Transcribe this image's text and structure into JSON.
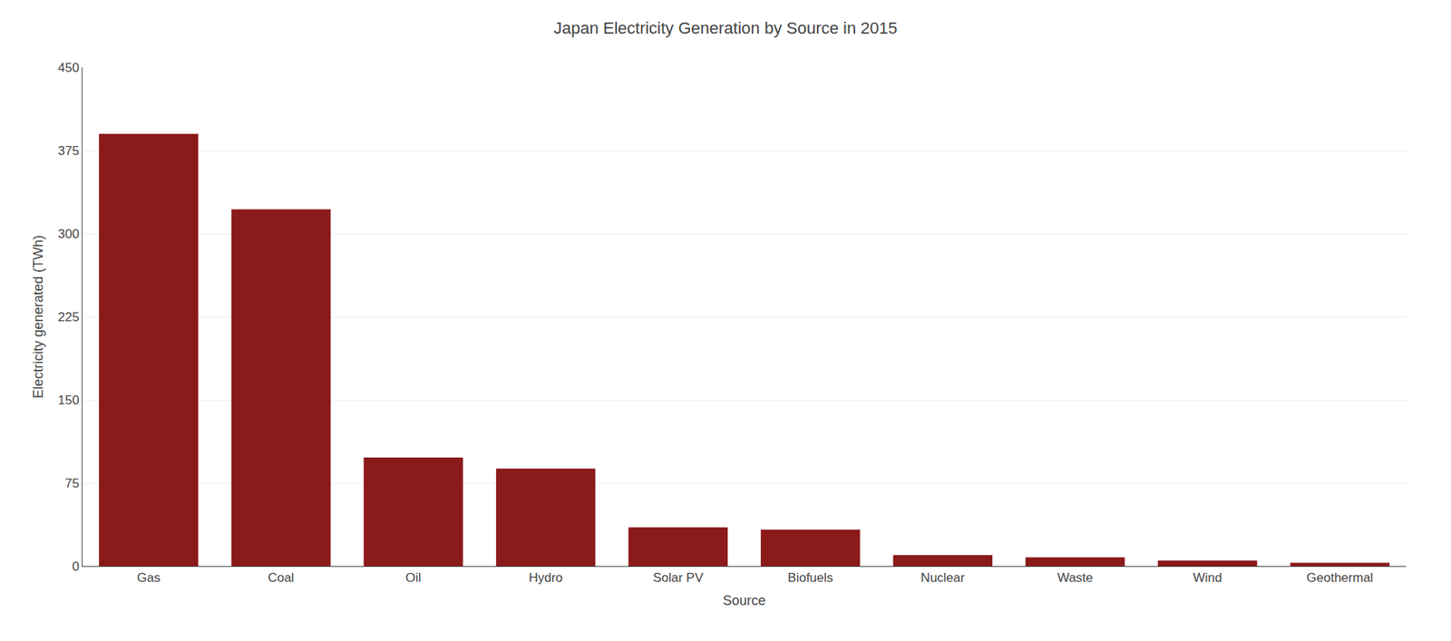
{
  "chart_data": {
    "type": "bar",
    "title": "Japan Electricity Generation by Source in 2015",
    "xlabel": "Source",
    "ylabel": "Electricity generated (TWh)",
    "categories": [
      "Gas",
      "Coal",
      "Oil",
      "Hydro",
      "Solar PV",
      "Biofuels",
      "Nuclear",
      "Waste",
      "Wind",
      "Geothermal"
    ],
    "values": [
      390,
      322,
      98,
      88,
      35,
      33,
      10,
      8,
      5,
      3
    ],
    "color": "#8B1A1A",
    "ylim": [
      0,
      450
    ],
    "yticks": [
      0,
      75,
      150,
      225,
      300,
      375,
      450
    ],
    "grid": true
  }
}
